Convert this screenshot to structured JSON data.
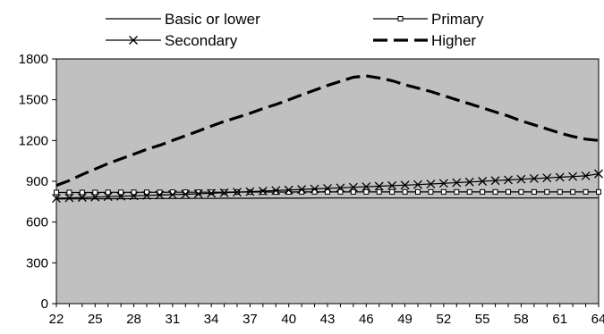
{
  "chart_data": {
    "type": "line",
    "title": "",
    "xlabel": "",
    "ylabel": "",
    "x": [
      22,
      23,
      24,
      25,
      26,
      27,
      28,
      29,
      30,
      31,
      32,
      33,
      34,
      35,
      36,
      37,
      38,
      39,
      40,
      41,
      42,
      43,
      44,
      45,
      46,
      47,
      48,
      49,
      50,
      51,
      52,
      53,
      54,
      55,
      56,
      57,
      58,
      59,
      60,
      61,
      62,
      63,
      64
    ],
    "x_ticks": [
      "22",
      "25",
      "28",
      "31",
      "34",
      "37",
      "40",
      "43",
      "46",
      "49",
      "52",
      "55",
      "58",
      "61",
      "64"
    ],
    "y_ticks": [
      "0",
      "300",
      "600",
      "900",
      "1200",
      "1500",
      "1800"
    ],
    "ylim": [
      0,
      1800
    ],
    "grid": false,
    "plot_background": "#c0c0c0",
    "legend_position": "top",
    "series": [
      {
        "name": "Basic or lower",
        "marker": "none",
        "line_style": "solid",
        "color": "#000000",
        "values": [
          770,
          770,
          771,
          771,
          772,
          772,
          772,
          773,
          773,
          773,
          774,
          774,
          774,
          775,
          775,
          775,
          776,
          776,
          776,
          776,
          777,
          777,
          777,
          777,
          777,
          777,
          777,
          777,
          777,
          777,
          777,
          777,
          777,
          777,
          777,
          777,
          777,
          777,
          777,
          777,
          777,
          777,
          777
        ]
      },
      {
        "name": "Primary",
        "marker": "square",
        "line_style": "solid",
        "color": "#000000",
        "values": [
          818,
          818,
          818,
          818,
          819,
          819,
          819,
          819,
          819,
          820,
          820,
          820,
          820,
          820,
          821,
          821,
          821,
          821,
          821,
          822,
          822,
          822,
          822,
          822,
          822,
          822,
          822,
          822,
          822,
          822,
          822,
          822,
          822,
          822,
          822,
          822,
          822,
          822,
          822,
          822,
          822,
          822,
          822
        ]
      },
      {
        "name": "Secondary",
        "marker": "x",
        "line_style": "solid",
        "color": "#000000",
        "values": [
          775,
          778,
          781,
          784,
          787,
          790,
          793,
          796,
          799,
          802,
          805,
          808,
          812,
          816,
          820,
          824,
          828,
          832,
          836,
          840,
          844,
          848,
          852,
          856,
          860,
          864,
          868,
          872,
          876,
          880,
          885,
          890,
          895,
          900,
          905,
          910,
          915,
          920,
          925,
          930,
          935,
          940,
          955
        ]
      },
      {
        "name": "Higher",
        "marker": "none",
        "line_style": "dashed",
        "color": "#000000",
        "values": [
          870,
          905,
          950,
          990,
          1030,
          1065,
          1100,
          1135,
          1165,
          1200,
          1235,
          1270,
          1305,
          1340,
          1370,
          1400,
          1435,
          1465,
          1500,
          1535,
          1570,
          1605,
          1635,
          1665,
          1675,
          1660,
          1640,
          1610,
          1585,
          1560,
          1530,
          1500,
          1470,
          1440,
          1410,
          1380,
          1345,
          1315,
          1285,
          1255,
          1230,
          1210,
          1200
        ]
      }
    ]
  }
}
